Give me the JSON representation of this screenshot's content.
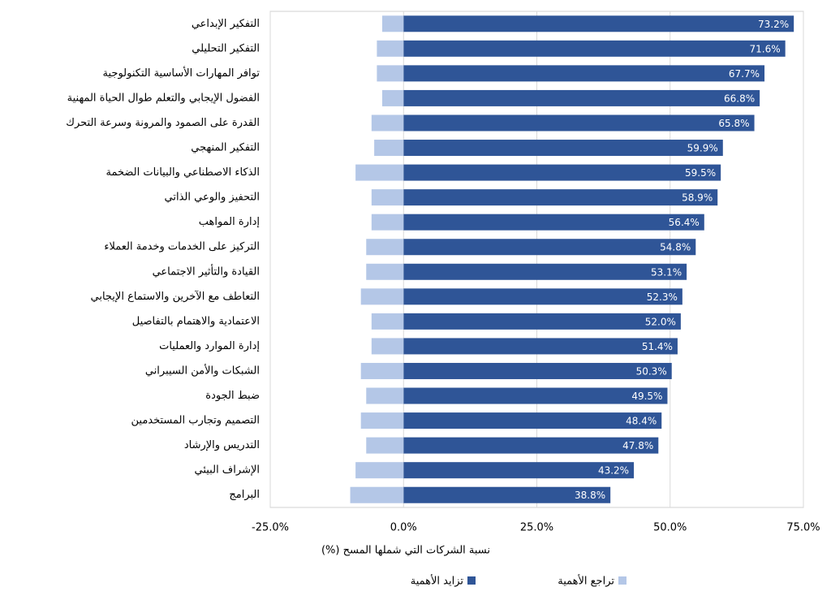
{
  "chart_data": {
    "type": "bar",
    "orientation": "horizontal",
    "x_label": "نسبة الشركات التي شملها المسح (%)",
    "categories": [
      "التفكير الإبداعي",
      "التفكير التحليلي",
      "توافر المهارات الأساسية التكنولوجية",
      "الفضول الإيجابي والتعلم طوال الحياة المهنية",
      "القدرة على الصمود والمرونة وسرعة التحرك",
      "التفكير المنهجي",
      "الذكاء الاصطناعي والبيانات الضخمة",
      "التحفيز والوعي الذاتي",
      "إدارة المواهب",
      "التركيز على الخدمات وخدمة العملاء",
      "القيادة والتأثير الاجتماعي",
      "التعاطف مع الآخرين والاستماع الإيجابي",
      "الاعتمادية والاهتمام بالتفاصيل",
      "إدارة الموارد والعمليات",
      "الشبكات والأمن السيبراني",
      "ضبط الجودة",
      "التصميم وتجارب المستخدمين",
      "التدريس والإرشاد",
      "الإشراف البيئي",
      "البرامج"
    ],
    "series": [
      {
        "name": "تزايد الأهمية",
        "color": "#2f5597",
        "values": [
          73.2,
          71.6,
          67.7,
          66.8,
          65.8,
          59.9,
          59.5,
          58.9,
          56.4,
          54.8,
          53.1,
          52.3,
          52.0,
          51.4,
          50.3,
          49.5,
          48.4,
          47.8,
          43.2,
          38.8
        ],
        "value_labels": [
          "73.2%",
          "71.6%",
          "67.7%",
          "66.8%",
          "65.8%",
          "59.9%",
          "59.5%",
          "58.9%",
          "56.4%",
          "54.8%",
          "53.1%",
          "52.3%",
          "52.0%",
          "51.4%",
          "50.3%",
          "49.5%",
          "48.4%",
          "47.8%",
          "43.2%",
          "38.8%"
        ]
      },
      {
        "name": "تراجع الأهمية",
        "color": "#b4c7e7",
        "values": [
          -4,
          -5,
          -5,
          -4,
          -6,
          -5.5,
          -9,
          -6,
          -6,
          -7,
          -7,
          -8,
          -6,
          -6,
          -8,
          -7,
          -8,
          -7,
          -9,
          -10
        ]
      }
    ],
    "xlim": [
      -25,
      75
    ],
    "xticks": [
      {
        "value": -25,
        "label": "-25.0%"
      },
      {
        "value": 0,
        "label": "0.0%"
      },
      {
        "value": 25,
        "label": "25.0%"
      },
      {
        "value": 50,
        "label": "50.0%"
      },
      {
        "value": 75,
        "label": "75.0%"
      }
    ],
    "grid": true
  }
}
